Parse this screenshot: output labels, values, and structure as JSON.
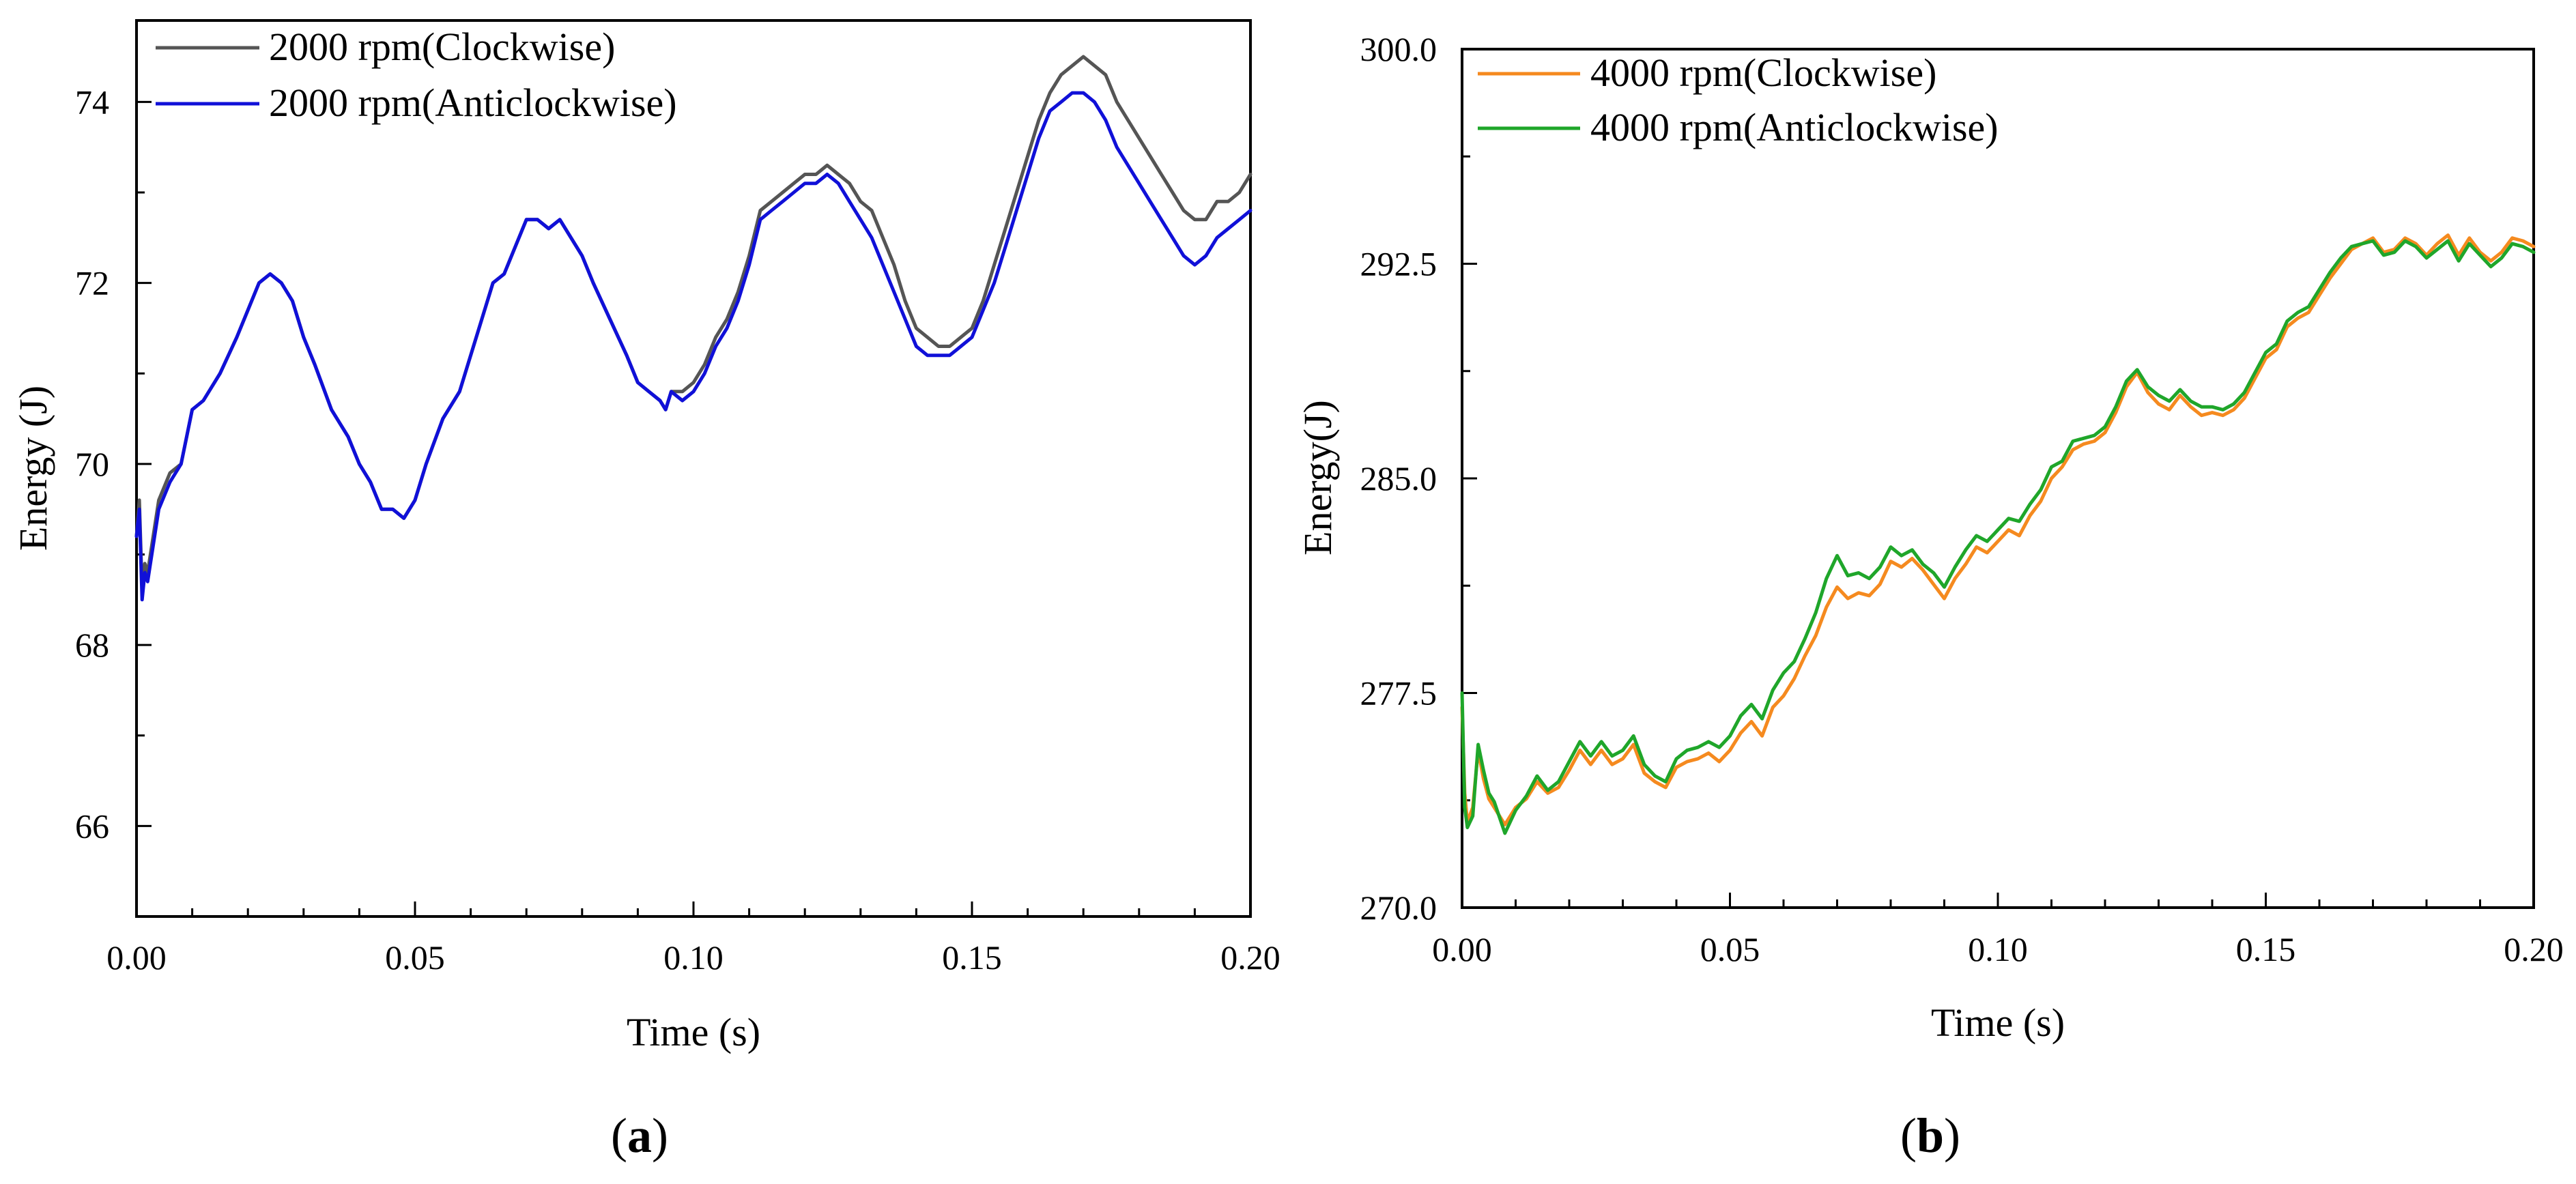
{
  "chart_data": [
    {
      "panel_label_open": "(",
      "panel_label_letter": "a",
      "panel_label_close": ")",
      "type": "line",
      "xlabel": "Time (s)",
      "ylabel": "Energy (J)",
      "xlim": [
        0,
        0.2
      ],
      "ylim": [
        65,
        74.9
      ],
      "xticks": [
        0.0,
        0.05,
        0.1,
        0.15,
        0.2
      ],
      "xtick_labels": [
        "0.00",
        "0.05",
        "0.10",
        "0.15",
        "0.20"
      ],
      "yticks": [
        66,
        68,
        70,
        72,
        74
      ],
      "ytick_labels": [
        "66",
        "68",
        "70",
        "72",
        "74"
      ],
      "legend_position": "top-left",
      "series": [
        {
          "name": "2000 rpm(Clockwise)",
          "color": "#555555",
          "x": [
            0.0,
            0.0005,
            0.001,
            0.0015,
            0.002,
            0.004,
            0.006,
            0.008,
            0.01,
            0.012,
            0.015,
            0.018,
            0.02,
            0.022,
            0.024,
            0.026,
            0.028,
            0.03,
            0.032,
            0.035,
            0.038,
            0.04,
            0.042,
            0.044,
            0.046,
            0.048,
            0.05,
            0.052,
            0.055,
            0.058,
            0.06,
            0.062,
            0.064,
            0.066,
            0.068,
            0.07,
            0.072,
            0.074,
            0.076,
            0.078,
            0.08,
            0.082,
            0.085,
            0.088,
            0.09,
            0.092,
            0.094,
            0.095,
            0.096,
            0.098,
            0.1,
            0.102,
            0.104,
            0.106,
            0.108,
            0.11,
            0.112,
            0.114,
            0.116,
            0.118,
            0.12,
            0.122,
            0.124,
            0.126,
            0.128,
            0.13,
            0.132,
            0.134,
            0.136,
            0.138,
            0.14,
            0.142,
            0.144,
            0.146,
            0.148,
            0.15,
            0.152,
            0.154,
            0.156,
            0.158,
            0.16,
            0.162,
            0.164,
            0.166,
            0.168,
            0.17,
            0.172,
            0.174,
            0.176,
            0.178,
            0.18,
            0.182,
            0.184,
            0.186,
            0.188,
            0.19,
            0.192,
            0.194,
            0.196,
            0.198,
            0.2
          ],
          "y": [
            69.2,
            69.6,
            68.6,
            68.9,
            68.8,
            69.6,
            69.9,
            70.0,
            70.6,
            70.7,
            71.0,
            71.4,
            71.7,
            72.0,
            72.1,
            72.0,
            71.8,
            71.4,
            71.1,
            70.6,
            70.3,
            70.0,
            69.8,
            69.5,
            69.5,
            69.4,
            69.6,
            70.0,
            70.5,
            70.8,
            71.2,
            71.6,
            72.0,
            72.1,
            72.4,
            72.7,
            72.7,
            72.6,
            72.7,
            72.5,
            72.3,
            72.0,
            71.6,
            71.2,
            70.9,
            70.8,
            70.7,
            70.6,
            70.8,
            70.8,
            70.9,
            71.1,
            71.4,
            71.6,
            71.9,
            72.3,
            72.8,
            72.9,
            73.0,
            73.1,
            73.2,
            73.2,
            73.3,
            73.2,
            73.1,
            72.9,
            72.8,
            72.5,
            72.2,
            71.8,
            71.5,
            71.4,
            71.3,
            71.3,
            71.4,
            71.5,
            71.8,
            72.2,
            72.6,
            73.0,
            73.4,
            73.8,
            74.1,
            74.3,
            74.4,
            74.5,
            74.4,
            74.3,
            74.0,
            73.8,
            73.6,
            73.4,
            73.2,
            73.0,
            72.8,
            72.7,
            72.7,
            72.9,
            72.9,
            73.0,
            73.2
          ]
        },
        {
          "name": "2000 rpm(Anticlockwise)",
          "color": "#1010d8",
          "x": [
            0.0,
            0.0005,
            0.001,
            0.0015,
            0.002,
            0.004,
            0.006,
            0.008,
            0.01,
            0.012,
            0.015,
            0.018,
            0.02,
            0.022,
            0.024,
            0.026,
            0.028,
            0.03,
            0.032,
            0.035,
            0.038,
            0.04,
            0.042,
            0.044,
            0.046,
            0.048,
            0.05,
            0.052,
            0.055,
            0.058,
            0.06,
            0.062,
            0.064,
            0.066,
            0.068,
            0.07,
            0.072,
            0.074,
            0.076,
            0.078,
            0.08,
            0.082,
            0.085,
            0.088,
            0.09,
            0.092,
            0.094,
            0.095,
            0.096,
            0.098,
            0.1,
            0.102,
            0.104,
            0.106,
            0.108,
            0.11,
            0.112,
            0.114,
            0.116,
            0.118,
            0.12,
            0.122,
            0.124,
            0.126,
            0.128,
            0.13,
            0.132,
            0.134,
            0.136,
            0.138,
            0.14,
            0.142,
            0.144,
            0.146,
            0.148,
            0.15,
            0.152,
            0.154,
            0.156,
            0.158,
            0.16,
            0.162,
            0.164,
            0.166,
            0.168,
            0.17,
            0.172,
            0.174,
            0.176,
            0.178,
            0.18,
            0.182,
            0.184,
            0.186,
            0.188,
            0.19,
            0.192,
            0.194,
            0.196,
            0.198,
            0.2
          ],
          "y": [
            69.2,
            69.5,
            68.5,
            68.8,
            68.7,
            69.5,
            69.8,
            70.0,
            70.6,
            70.7,
            71.0,
            71.4,
            71.7,
            72.0,
            72.1,
            72.0,
            71.8,
            71.4,
            71.1,
            70.6,
            70.3,
            70.0,
            69.8,
            69.5,
            69.5,
            69.4,
            69.6,
            70.0,
            70.5,
            70.8,
            71.2,
            71.6,
            72.0,
            72.1,
            72.4,
            72.7,
            72.7,
            72.6,
            72.7,
            72.5,
            72.3,
            72.0,
            71.6,
            71.2,
            70.9,
            70.8,
            70.7,
            70.6,
            70.8,
            70.7,
            70.8,
            71.0,
            71.3,
            71.5,
            71.8,
            72.2,
            72.7,
            72.8,
            72.9,
            73.0,
            73.1,
            73.1,
            73.2,
            73.1,
            72.9,
            72.7,
            72.5,
            72.2,
            71.9,
            71.6,
            71.3,
            71.2,
            71.2,
            71.2,
            71.3,
            71.4,
            71.7,
            72.0,
            72.4,
            72.8,
            73.2,
            73.6,
            73.9,
            74.0,
            74.1,
            74.1,
            74.0,
            73.8,
            73.5,
            73.3,
            73.1,
            72.9,
            72.7,
            72.5,
            72.3,
            72.2,
            72.3,
            72.5,
            72.6,
            72.7,
            72.8
          ]
        }
      ]
    },
    {
      "panel_label_open": "(",
      "panel_label_letter": "b",
      "panel_label_close": ")",
      "type": "line",
      "xlabel": "Time (s)",
      "ylabel": "Energy(J)",
      "xlim": [
        0,
        0.2
      ],
      "ylim": [
        270,
        300
      ],
      "xticks": [
        0.0,
        0.05,
        0.1,
        0.15,
        0.2
      ],
      "xtick_labels": [
        "0.00",
        "0.05",
        "0.10",
        "0.15",
        "0.20"
      ],
      "yticks": [
        270,
        277.5,
        285,
        292.5,
        300
      ],
      "ytick_labels": [
        "270.0",
        "277.5",
        "285.0",
        "292.5",
        "300.0"
      ],
      "legend_position": "top-left",
      "series": [
        {
          "name": "4000 rpm(Clockwise)",
          "color": "#f58a1f",
          "x": [
            0.0,
            0.0005,
            0.001,
            0.002,
            0.003,
            0.004,
            0.005,
            0.006,
            0.008,
            0.01,
            0.012,
            0.014,
            0.016,
            0.018,
            0.02,
            0.022,
            0.024,
            0.026,
            0.028,
            0.03,
            0.032,
            0.034,
            0.036,
            0.038,
            0.04,
            0.042,
            0.044,
            0.046,
            0.048,
            0.05,
            0.052,
            0.054,
            0.056,
            0.058,
            0.06,
            0.062,
            0.064,
            0.066,
            0.068,
            0.07,
            0.072,
            0.074,
            0.076,
            0.078,
            0.08,
            0.082,
            0.084,
            0.086,
            0.088,
            0.09,
            0.092,
            0.094,
            0.096,
            0.098,
            0.1,
            0.102,
            0.104,
            0.106,
            0.108,
            0.11,
            0.112,
            0.114,
            0.116,
            0.118,
            0.12,
            0.122,
            0.124,
            0.126,
            0.128,
            0.13,
            0.132,
            0.134,
            0.136,
            0.138,
            0.14,
            0.142,
            0.144,
            0.146,
            0.148,
            0.15,
            0.152,
            0.154,
            0.156,
            0.158,
            0.16,
            0.162,
            0.164,
            0.166,
            0.168,
            0.17,
            0.172,
            0.174,
            0.176,
            0.178,
            0.18,
            0.182,
            0.184,
            0.186,
            0.188,
            0.19,
            0.192,
            0.194,
            0.196,
            0.198,
            0.2
          ],
          "y": [
            277.0,
            274.0,
            273.0,
            273.5,
            275.5,
            274.5,
            273.8,
            273.5,
            272.9,
            273.5,
            273.8,
            274.4,
            274.0,
            274.2,
            274.8,
            275.5,
            275.0,
            275.5,
            275.0,
            275.2,
            275.7,
            274.7,
            274.4,
            274.2,
            274.9,
            275.1,
            275.2,
            275.4,
            275.1,
            275.5,
            276.1,
            276.5,
            276.0,
            277.0,
            277.4,
            278.0,
            278.8,
            279.5,
            280.5,
            281.2,
            280.8,
            281.0,
            280.9,
            281.3,
            282.1,
            281.9,
            282.2,
            281.8,
            281.3,
            280.8,
            281.5,
            282.0,
            282.6,
            282.4,
            282.8,
            283.2,
            283.0,
            283.7,
            284.2,
            285.0,
            285.4,
            286.0,
            286.2,
            286.3,
            286.6,
            287.3,
            288.2,
            288.7,
            288.0,
            287.6,
            287.4,
            287.9,
            287.5,
            287.2,
            287.3,
            287.2,
            287.4,
            287.8,
            288.5,
            289.2,
            289.5,
            290.3,
            290.6,
            290.8,
            291.4,
            292.0,
            292.5,
            293.0,
            293.2,
            293.4,
            292.9,
            293.0,
            293.4,
            293.2,
            292.8,
            293.2,
            293.5,
            292.8,
            293.4,
            292.9,
            292.6,
            292.9,
            293.4,
            293.3,
            293.1
          ]
        },
        {
          "name": "4000 rpm(Anticlockwise)",
          "color": "#1fa62a",
          "x": [
            0.0,
            0.0005,
            0.001,
            0.002,
            0.003,
            0.004,
            0.005,
            0.006,
            0.008,
            0.01,
            0.012,
            0.014,
            0.016,
            0.018,
            0.02,
            0.022,
            0.024,
            0.026,
            0.028,
            0.03,
            0.032,
            0.034,
            0.036,
            0.038,
            0.04,
            0.042,
            0.044,
            0.046,
            0.048,
            0.05,
            0.052,
            0.054,
            0.056,
            0.058,
            0.06,
            0.062,
            0.064,
            0.066,
            0.068,
            0.07,
            0.072,
            0.074,
            0.076,
            0.078,
            0.08,
            0.082,
            0.084,
            0.086,
            0.088,
            0.09,
            0.092,
            0.094,
            0.096,
            0.098,
            0.1,
            0.102,
            0.104,
            0.106,
            0.108,
            0.11,
            0.112,
            0.114,
            0.116,
            0.118,
            0.12,
            0.122,
            0.124,
            0.126,
            0.128,
            0.13,
            0.132,
            0.134,
            0.136,
            0.138,
            0.14,
            0.142,
            0.144,
            0.146,
            0.148,
            0.15,
            0.152,
            0.154,
            0.156,
            0.158,
            0.16,
            0.162,
            0.164,
            0.166,
            0.168,
            0.17,
            0.172,
            0.174,
            0.176,
            0.178,
            0.18,
            0.182,
            0.184,
            0.186,
            0.188,
            0.19,
            0.192,
            0.194,
            0.196,
            0.198,
            0.2
          ],
          "y": [
            277.5,
            273.5,
            272.8,
            273.2,
            275.7,
            274.8,
            274.0,
            273.7,
            272.6,
            273.4,
            273.9,
            274.6,
            274.1,
            274.4,
            275.1,
            275.8,
            275.3,
            275.8,
            275.3,
            275.5,
            276.0,
            275.0,
            274.6,
            274.4,
            275.2,
            275.5,
            275.6,
            275.8,
            275.6,
            276.0,
            276.7,
            277.1,
            276.6,
            277.6,
            278.2,
            278.6,
            279.4,
            280.3,
            281.5,
            282.3,
            281.6,
            281.7,
            281.5,
            281.9,
            282.6,
            282.3,
            282.5,
            282.0,
            281.7,
            281.2,
            281.9,
            282.5,
            283.0,
            282.8,
            283.2,
            283.6,
            283.5,
            284.1,
            284.6,
            285.4,
            285.6,
            286.3,
            286.4,
            286.5,
            286.8,
            287.5,
            288.4,
            288.8,
            288.2,
            287.9,
            287.7,
            288.1,
            287.7,
            287.5,
            287.5,
            287.4,
            287.6,
            288.0,
            288.7,
            289.4,
            289.7,
            290.5,
            290.8,
            291.0,
            291.6,
            292.2,
            292.7,
            293.1,
            293.2,
            293.3,
            292.8,
            292.9,
            293.3,
            293.1,
            292.7,
            293.0,
            293.3,
            292.6,
            293.2,
            292.8,
            292.4,
            292.7,
            293.2,
            293.1,
            292.9
          ]
        }
      ]
    }
  ]
}
